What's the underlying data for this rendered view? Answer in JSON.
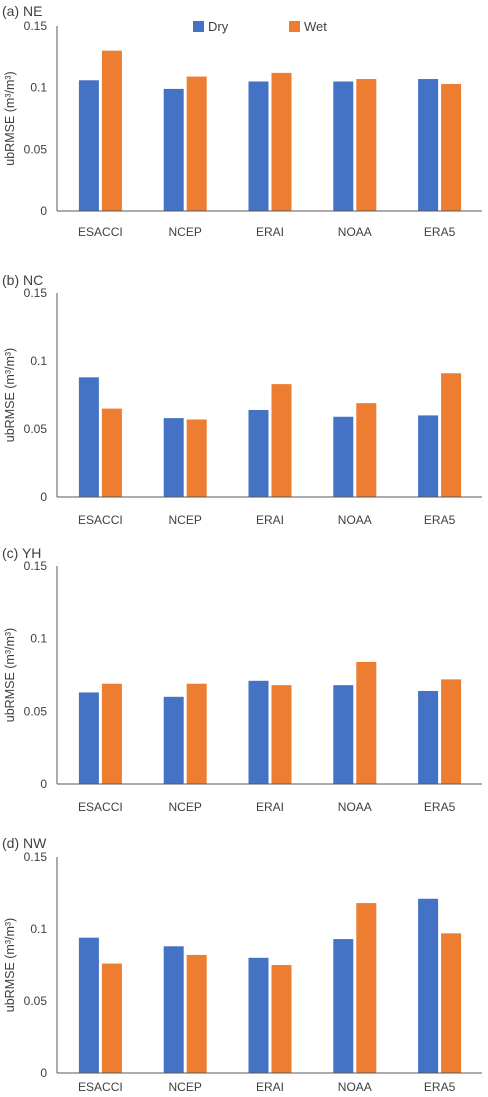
{
  "legend": {
    "position": "top-center",
    "items": [
      {
        "name": "Dry",
        "color": "#4472C4"
      },
      {
        "name": "Wet",
        "color": "#ED7D31"
      }
    ]
  },
  "chart_data": [
    {
      "type": "bar",
      "title": "(a) NE",
      "ylabel": "ubRMSE (m³/m³)",
      "categories": [
        "ESACCI",
        "NCEP",
        "ERAI",
        "NOAA",
        "ERA5"
      ],
      "ylim": [
        0,
        0.15
      ],
      "yticks": [
        "0",
        "0.05",
        "0.1",
        "0.15"
      ],
      "grid": false,
      "show_legend": true,
      "series": [
        {
          "name": "Dry",
          "color": "#4472C4",
          "values": [
            0.106,
            0.099,
            0.105,
            0.105,
            0.107
          ]
        },
        {
          "name": "Wet",
          "color": "#ED7D31",
          "values": [
            0.13,
            0.109,
            0.112,
            0.107,
            0.103
          ]
        }
      ]
    },
    {
      "type": "bar",
      "title": "(b) NC",
      "ylabel": "ubRMSE (m³/m³)",
      "categories": [
        "ESACCI",
        "NCEP",
        "ERAI",
        "NOAA",
        "ERA5"
      ],
      "ylim": [
        0,
        0.15
      ],
      "yticks": [
        "0",
        "0.05",
        "0.1",
        "0.15"
      ],
      "grid": false,
      "show_legend": false,
      "series": [
        {
          "name": "Dry",
          "color": "#4472C4",
          "values": [
            0.088,
            0.058,
            0.064,
            0.059,
            0.06
          ]
        },
        {
          "name": "Wet",
          "color": "#ED7D31",
          "values": [
            0.065,
            0.057,
            0.083,
            0.069,
            0.091
          ]
        }
      ]
    },
    {
      "type": "bar",
      "title": "(c) YH",
      "ylabel": "ubRMSE (m³/m³)",
      "categories": [
        "ESACCI",
        "NCEP",
        "ERAI",
        "NOAA",
        "ERA5"
      ],
      "ylim": [
        0,
        0.15
      ],
      "yticks": [
        "0",
        "0.05",
        "0.1",
        "0.15"
      ],
      "grid": false,
      "show_legend": false,
      "series": [
        {
          "name": "Dry",
          "color": "#4472C4",
          "values": [
            0.063,
            0.06,
            0.071,
            0.068,
            0.064
          ]
        },
        {
          "name": "Wet",
          "color": "#ED7D31",
          "values": [
            0.069,
            0.069,
            0.068,
            0.084,
            0.072
          ]
        }
      ]
    },
    {
      "type": "bar",
      "title": "(d) NW",
      "ylabel": "ubRMSE (m³/m³)",
      "categories": [
        "ESACCI",
        "NCEP",
        "ERAI",
        "NOAA",
        "ERA5"
      ],
      "ylim": [
        0,
        0.15
      ],
      "yticks": [
        "0",
        "0.05",
        "0.1",
        "0.15"
      ],
      "grid": false,
      "show_legend": false,
      "series": [
        {
          "name": "Dry",
          "color": "#4472C4",
          "values": [
            0.094,
            0.088,
            0.08,
            0.093,
            0.121
          ]
        },
        {
          "name": "Wet",
          "color": "#ED7D31",
          "values": [
            0.076,
            0.082,
            0.075,
            0.118,
            0.097
          ]
        }
      ]
    }
  ]
}
